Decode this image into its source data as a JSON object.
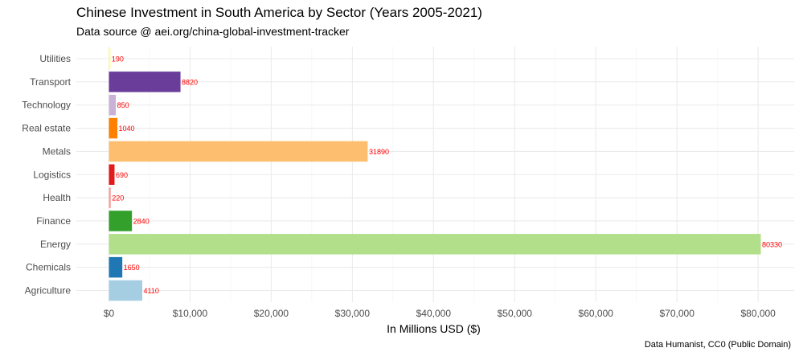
{
  "chart_data": {
    "type": "bar",
    "orientation": "horizontal",
    "title": "Chinese Investment in South America by Sector (Years 2005-2021)",
    "subtitle": "Data source @ aei.org/china-global-investment-tracker",
    "caption": "Data Humanist, CC0 (Public Domain)",
    "xlabel": "In Millions USD ($)",
    "ylabel": "",
    "categories": [
      "Agriculture",
      "Chemicals",
      "Energy",
      "Finance",
      "Health",
      "Logistics",
      "Metals",
      "Real estate",
      "Technology",
      "Transport",
      "Utilities"
    ],
    "values": [
      4110,
      1650,
      80330,
      2840,
      220,
      690,
      31890,
      1040,
      850,
      8820,
      190
    ],
    "colors": [
      "#A6CEE3",
      "#1F78B4",
      "#B2DF8A",
      "#33A02C",
      "#FB9A99",
      "#E31A1C",
      "#FDBF6F",
      "#FF7F00",
      "#CAB2D6",
      "#6A3D9A",
      "#FFFF99"
    ],
    "xlim": [
      0,
      83000
    ],
    "xticks": [
      0,
      10000,
      20000,
      30000,
      40000,
      50000,
      60000,
      70000,
      80000
    ],
    "xtick_labels": [
      "$0",
      "$10,000",
      "$20,000",
      "$30,000",
      "$40,000",
      "$50,000",
      "$60,000",
      "$70,000",
      "$80,000"
    ],
    "data_label_color": "#ff0000",
    "grid": true,
    "legend": "none"
  }
}
